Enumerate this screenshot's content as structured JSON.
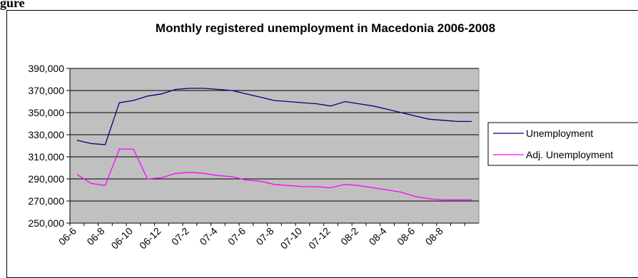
{
  "corner_label": "gure",
  "chart_data": {
    "type": "line",
    "title": "Monthly registered unemployment in Macedonia  2006-2008",
    "xlabel": "",
    "ylabel": "",
    "ylim": [
      250000,
      390000
    ],
    "yticks": [
      "390,000",
      "370,000",
      "350,000",
      "330,000",
      "310,000",
      "290,000",
      "270,000",
      "250,000"
    ],
    "ytick_values": [
      390000,
      370000,
      350000,
      330000,
      310000,
      290000,
      270000,
      250000
    ],
    "x": [
      "06-6",
      "06-7",
      "06-8",
      "06-9",
      "06-10",
      "06-11",
      "06-12",
      "07-1",
      "07-2",
      "07-3",
      "07-4",
      "07-5",
      "07-6",
      "07-7",
      "07-8",
      "07-9",
      "07-10",
      "07-11",
      "07-12",
      "08-1",
      "08-2",
      "08-3",
      "08-4",
      "08-5",
      "08-6",
      "08-7",
      "08-8",
      "08-9",
      "08-10"
    ],
    "xtick_labels": [
      "06-6",
      "06-8",
      "06-10",
      "06-12",
      "07-2",
      "07-4",
      "07-6",
      "07-8",
      "07-10",
      "07-12",
      "08-2",
      "08-4",
      "08-6",
      "08-8"
    ],
    "grid": true,
    "legend_position": "right",
    "series": [
      {
        "name": "Unemployment",
        "color": "#000080",
        "values": [
          325000,
          322000,
          321000,
          359000,
          361000,
          365000,
          367000,
          371000,
          372000,
          372000,
          371000,
          370000,
          367000,
          364000,
          361000,
          360000,
          359000,
          358000,
          356000,
          360000,
          358000,
          356000,
          353000,
          350000,
          347000,
          344000,
          343000,
          342000,
          342000
        ]
      },
      {
        "name": "Adj. Unemployment",
        "color": "#ff00ff",
        "values": [
          294000,
          286000,
          284000,
          317000,
          317000,
          290000,
          291000,
          295000,
          296000,
          295000,
          293000,
          292000,
          289000,
          288000,
          285000,
          284000,
          283000,
          283000,
          282000,
          285000,
          284000,
          282000,
          280000,
          278000,
          274000,
          272000,
          271000,
          271000,
          271000
        ]
      }
    ],
    "colors": {
      "plot_background": "#c0c0c0",
      "gridline": "#000000"
    }
  }
}
